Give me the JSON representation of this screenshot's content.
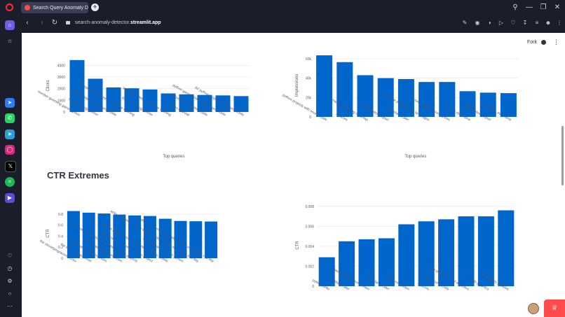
{
  "browser": {
    "tab_title": "Search Query Anomaly Detec",
    "new_tab": "+",
    "url_prefix": "search-anomaly-detector.",
    "url_domain": "streamlit.app"
  },
  "app": {
    "fork_label": "Fork",
    "section_title": "CTR Extremes"
  },
  "chart_data": [
    {
      "type": "bar",
      "title": "",
      "xlabel": "Top queries",
      "ylabel": "Clicks",
      "ylim": [
        0,
        4500
      ],
      "yticks": [
        "0",
        "1000",
        "2000",
        "3000",
        "4000"
      ],
      "ytick_values": [
        0,
        1000,
        2000,
        3000,
        4000
      ],
      "categories": [
        "number guessing game python",
        "thecleverprogrammer",
        "python projects with source code",
        "classification report in machine learning",
        "the clever programmer",
        "standard scaler in machine learning",
        "aman kharwal",
        "python turtle graphics code",
        "python game projects with source code",
        "82 python projects with source code"
      ],
      "values": [
        4450,
        2850,
        2100,
        2030,
        1930,
        1590,
        1510,
        1460,
        1420,
        1360
      ],
      "color": "#0066cc"
    },
    {
      "type": "bar",
      "title": "",
      "xlabel": "Top queries",
      "ylabel": "Impressions",
      "ylim": [
        0,
        65000
      ],
      "yticks": [
        "0",
        "20k",
        "40k",
        "60k"
      ],
      "ytick_values": [
        0,
        20000,
        40000,
        60000
      ],
      "categories": [
        "python projects with source code",
        "r2 score",
        "machine learning roadmap",
        "classification report",
        "standardscaler",
        "facebook programming languages",
        "mini paper scissors python",
        "pandas dataframe",
        "classification_report",
        "pandas_dataframe"
      ],
      "values": [
        63500,
        56500,
        43000,
        40000,
        39000,
        36000,
        36000,
        26500,
        25000,
        24500
      ],
      "color": "#0066cc"
    },
    {
      "type": "bar",
      "title": "",
      "xlabel": "",
      "ylabel": "CTR",
      "ylim": [
        0,
        0.9
      ],
      "yticks": [
        "0",
        "0.2",
        "0.4",
        "0.6",
        "0.8"
      ],
      "ytick_values": [
        0,
        0.2,
        0.4,
        0.6,
        0.8
      ],
      "categories": [
        "the cleverprogrammer.com",
        "the clever programmer",
        "thecleverprogrammer.com",
        "the clever programmer.com",
        "the clever programmer machine learning projects",
        "the clever programmer python project",
        "python program on how to write a step to mobile",
        "the card game code in python",
        "write a python program that calculate number of seconds in a day",
        "python program to calculate number of seconds in a day"
      ],
      "values": [
        0.855,
        0.825,
        0.81,
        0.79,
        0.775,
        0.765,
        0.715,
        0.675,
        0.67,
        0.665
      ],
      "color": "#0066cc"
    },
    {
      "type": "bar",
      "title": "",
      "xlabel": "",
      "ylabel": "CTR",
      "ylim": [
        0,
        0.0082
      ],
      "yticks": [
        "0",
        "0.002",
        "0.004",
        "0.006",
        "0.008"
      ],
      "ytick_values": [
        0,
        0.002,
        0.004,
        0.006,
        0.008
      ],
      "categories": [
        "python turtle",
        "standardscaler",
        "classification report sklearn",
        "standard scaler",
        "r2 score sklearn",
        "r2 score",
        "python source code",
        "online payment fraud detection",
        "turtle graphics",
        "water quality analysis"
      ],
      "values": [
        0.0029,
        0.0045,
        0.0047,
        0.0048,
        0.0062,
        0.0065,
        0.0067,
        0.007,
        0.007,
        0.0076
      ],
      "color": "#0066cc"
    }
  ]
}
